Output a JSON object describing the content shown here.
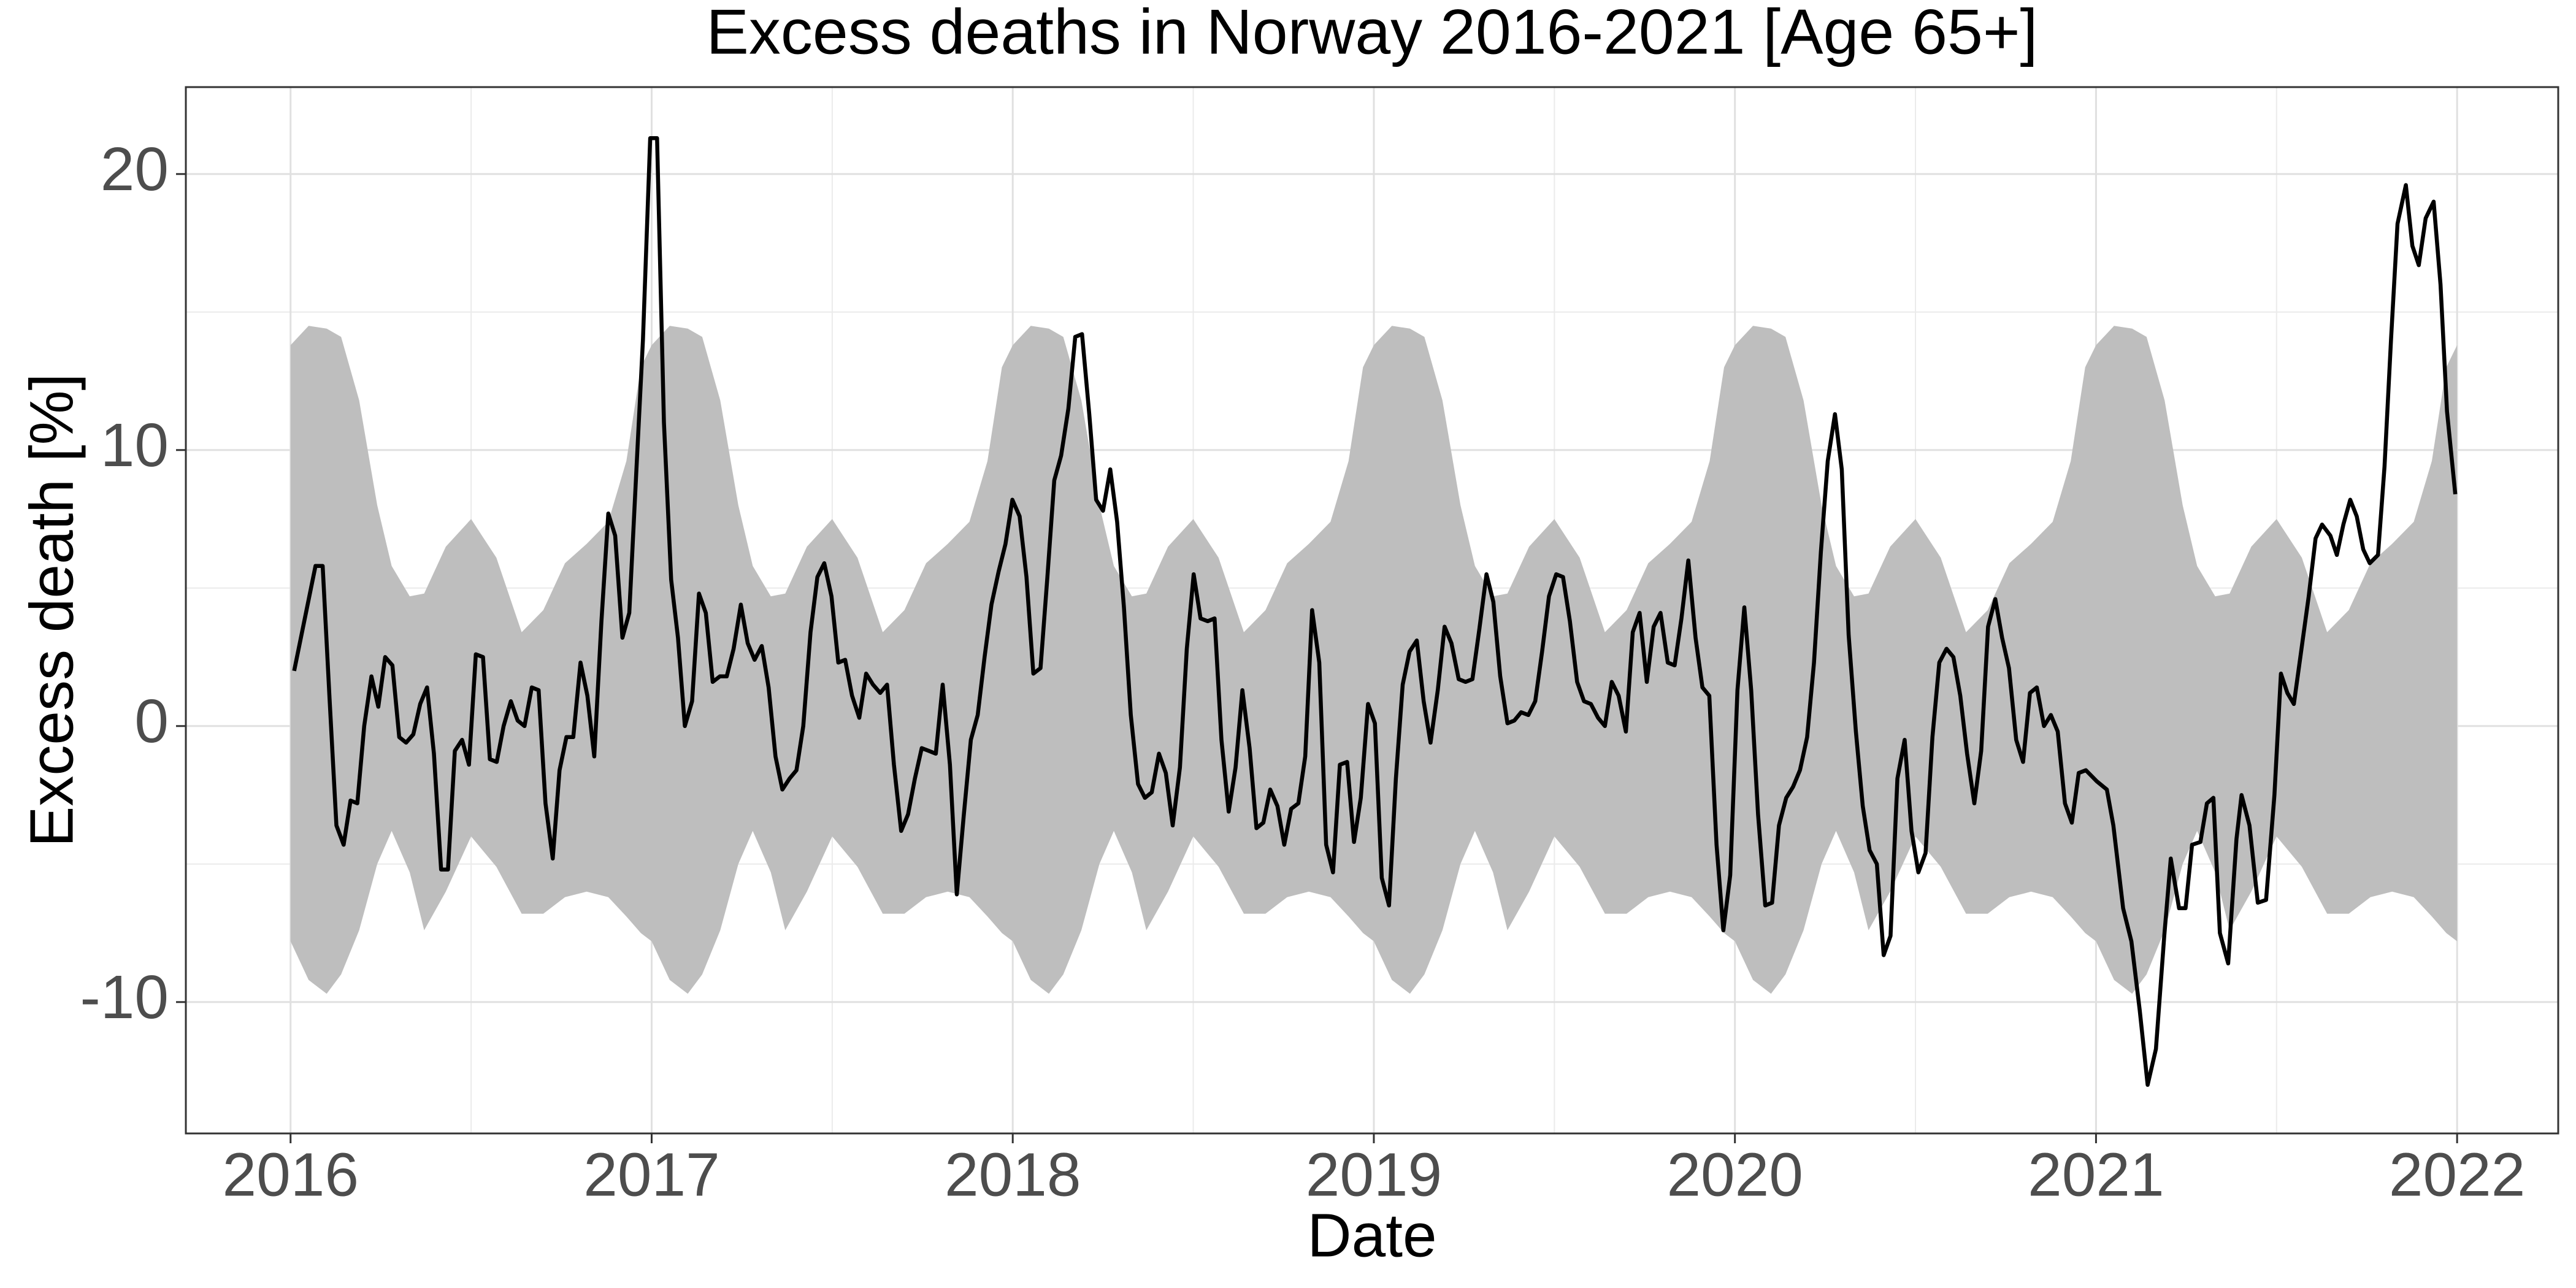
{
  "chart_data": {
    "type": "line",
    "title": "Excess deaths in Norway 2016-2021 [Age 65+]",
    "x_label": "Date",
    "y_label": "Excess death [%]",
    "xlim": [
      2015.71,
      2022.28
    ],
    "ylim": [
      -14.76,
      23.15
    ],
    "xticks": [
      2016,
      2017,
      2018,
      2019,
      2020,
      2021,
      2022
    ],
    "yticks": [
      -10,
      0,
      10,
      20
    ],
    "grid": true,
    "minor_grid": true,
    "band": {
      "color": "#bebebe",
      "x": [
        2016,
        2016.05,
        2016.1,
        2016.14,
        2016.19,
        2016.24,
        2016.28,
        2016.33,
        2016.37,
        2016.43,
        2016.5,
        2016.57,
        2016.64,
        2016.7,
        2016.76,
        2016.82,
        2016.88,
        2016.93,
        2016.97,
        2017,
        2017.05,
        2017.1,
        2017.14,
        2017.19,
        2017.24,
        2017.28,
        2017.33,
        2017.37,
        2017.43,
        2017.5,
        2017.57,
        2017.64,
        2017.7,
        2017.76,
        2017.82,
        2017.88,
        2017.93,
        2017.97,
        2018,
        2018.05,
        2018.1,
        2018.14,
        2018.19,
        2018.24,
        2018.28,
        2018.33,
        2018.37,
        2018.43,
        2018.5,
        2018.57,
        2018.64,
        2018.7,
        2018.76,
        2018.82,
        2018.88,
        2018.93,
        2018.97,
        2019,
        2019.05,
        2019.1,
        2019.14,
        2019.19,
        2019.24,
        2019.28,
        2019.33,
        2019.37,
        2019.43,
        2019.5,
        2019.57,
        2019.64,
        2019.7,
        2019.76,
        2019.82,
        2019.88,
        2019.93,
        2019.97,
        2020,
        2020.05,
        2020.1,
        2020.14,
        2020.19,
        2020.24,
        2020.28,
        2020.33,
        2020.37,
        2020.43,
        2020.5,
        2020.57,
        2020.64,
        2020.7,
        2020.76,
        2020.82,
        2020.88,
        2020.93,
        2020.97,
        2021,
        2021.05,
        2021.1,
        2021.14,
        2021.19,
        2021.24,
        2021.28,
        2021.33,
        2021.37,
        2021.43,
        2021.5,
        2021.57,
        2021.64,
        2021.7,
        2021.76,
        2021.82,
        2021.88,
        2021.93,
        2021.97,
        2022
      ],
      "upper": [
        13.8,
        14.5,
        14.4,
        14.1,
        11.8,
        8,
        5.8,
        4.7,
        4.8,
        6.5,
        7.5,
        6.1,
        3.4,
        4.2,
        5.9,
        6.6,
        7.4,
        9.6,
        13,
        13.8,
        14.5,
        14.4,
        14.1,
        11.8,
        8,
        5.8,
        4.7,
        4.8,
        6.5,
        7.5,
        6.1,
        3.4,
        4.2,
        5.9,
        6.6,
        7.4,
        9.6,
        13,
        13.8,
        14.5,
        14.4,
        14.1,
        11.8,
        8,
        5.8,
        4.7,
        4.8,
        6.5,
        7.5,
        6.1,
        3.4,
        4.2,
        5.9,
        6.6,
        7.4,
        9.6,
        13,
        13.8,
        14.5,
        14.4,
        14.1,
        11.8,
        8,
        5.8,
        4.7,
        4.8,
        6.5,
        7.5,
        6.1,
        3.4,
        4.2,
        5.9,
        6.6,
        7.4,
        9.6,
        13,
        13.8,
        14.5,
        14.4,
        14.1,
        11.8,
        8,
        5.8,
        4.7,
        4.8,
        6.5,
        7.5,
        6.1,
        3.4,
        4.2,
        5.9,
        6.6,
        7.4,
        9.6,
        13,
        13.8,
        14.5,
        14.4,
        14.1,
        11.8,
        8,
        5.8,
        4.7,
        4.8,
        6.5,
        7.5,
        6.1,
        3.4,
        4.2,
        5.9,
        6.6,
        7.4,
        9.6,
        13,
        13.8
      ],
      "lower": [
        -7.8,
        -9.2,
        -9.7,
        -9,
        -7.4,
        -5,
        -3.8,
        -5.3,
        -7.4,
        -6,
        -4,
        -5.1,
        -6.8,
        -6.8,
        -6.2,
        -6,
        -6.2,
        -6.9,
        -7.5,
        -7.8,
        -9.2,
        -9.7,
        -9,
        -7.4,
        -5,
        -3.8,
        -5.3,
        -7.4,
        -6,
        -4,
        -5.1,
        -6.8,
        -6.8,
        -6.2,
        -6,
        -6.2,
        -6.9,
        -7.5,
        -7.8,
        -9.2,
        -9.7,
        -9,
        -7.4,
        -5,
        -3.8,
        -5.3,
        -7.4,
        -6,
        -4,
        -5.1,
        -6.8,
        -6.8,
        -6.2,
        -6,
        -6.2,
        -6.9,
        -7.5,
        -7.8,
        -9.2,
        -9.7,
        -9,
        -7.4,
        -5,
        -3.8,
        -5.3,
        -7.4,
        -6,
        -4,
        -5.1,
        -6.8,
        -6.8,
        -6.2,
        -6,
        -6.2,
        -6.9,
        -7.5,
        -7.8,
        -9.2,
        -9.7,
        -9,
        -7.4,
        -5,
        -3.8,
        -5.3,
        -7.4,
        -6,
        -4,
        -5.1,
        -6.8,
        -6.8,
        -6.2,
        -6,
        -6.2,
        -6.9,
        -7.5,
        -7.8,
        -9.2,
        -9.7,
        -9,
        -7.4,
        -5,
        -3.8,
        -5.3,
        -7.4,
        -6,
        -4,
        -5.1,
        -6.8,
        -6.8,
        -6.2,
        -6,
        -6.2,
        -6.9,
        -7.5,
        -7.8
      ]
    },
    "series": [
      {
        "color": "#000000",
        "x": [
          2016.01,
          2016.069,
          2016.089,
          2016.108,
          2016.127,
          2016.147,
          2016.166,
          2016.185,
          2016.204,
          2016.224,
          2016.243,
          2016.262,
          2016.282,
          2016.301,
          2016.32,
          2016.34,
          2016.359,
          2016.378,
          2016.397,
          2016.417,
          2016.436,
          2016.455,
          2016.475,
          2016.494,
          2016.513,
          2016.533,
          2016.552,
          2016.571,
          2016.59,
          2016.61,
          2016.629,
          2016.648,
          2016.668,
          2016.687,
          2016.706,
          2016.726,
          2016.745,
          2016.764,
          2016.783,
          2016.803,
          2016.822,
          2016.841,
          2016.861,
          2016.88,
          2016.899,
          2016.919,
          2016.938,
          2016.957,
          2016.976,
          2016.996,
          2017.015,
          2017.034,
          2017.054,
          2017.073,
          2017.092,
          2017.112,
          2017.131,
          2017.15,
          2017.169,
          2017.189,
          2017.208,
          2017.227,
          2017.247,
          2017.266,
          2017.285,
          2017.305,
          2017.324,
          2017.343,
          2017.362,
          2017.382,
          2017.401,
          2017.42,
          2017.44,
          2017.459,
          2017.478,
          2017.498,
          2017.517,
          2017.536,
          2017.555,
          2017.575,
          2017.594,
          2017.613,
          2017.633,
          2017.652,
          2017.671,
          2017.691,
          2017.71,
          2017.729,
          2017.748,
          2017.768,
          2017.787,
          2017.806,
          2017.826,
          2017.845,
          2017.864,
          2017.884,
          2017.903,
          2017.922,
          2017.941,
          2017.961,
          2017.98,
          2017.999,
          2018.019,
          2018.038,
          2018.057,
          2018.077,
          2018.096,
          2018.115,
          2018.134,
          2018.154,
          2018.173,
          2018.192,
          2018.212,
          2018.231,
          2018.25,
          2018.27,
          2018.289,
          2018.308,
          2018.327,
          2018.347,
          2018.366,
          2018.385,
          2018.405,
          2018.424,
          2018.443,
          2018.463,
          2018.482,
          2018.501,
          2018.52,
          2018.54,
          2018.559,
          2018.578,
          2018.598,
          2018.617,
          2018.636,
          2018.656,
          2018.675,
          2018.694,
          2018.713,
          2018.733,
          2018.752,
          2018.771,
          2018.791,
          2018.81,
          2018.829,
          2018.849,
          2018.868,
          2018.887,
          2018.906,
          2018.926,
          2018.945,
          2018.964,
          2018.984,
          2019.003,
          2019.022,
          2019.042,
          2019.061,
          2019.08,
          2019.099,
          2019.119,
          2019.138,
          2019.157,
          2019.177,
          2019.196,
          2019.215,
          2019.235,
          2019.254,
          2019.273,
          2019.292,
          2019.312,
          2019.331,
          2019.35,
          2019.37,
          2019.389,
          2019.408,
          2019.428,
          2019.447,
          2019.466,
          2019.485,
          2019.505,
          2019.524,
          2019.543,
          2019.563,
          2019.582,
          2019.601,
          2019.621,
          2019.64,
          2019.659,
          2019.678,
          2019.698,
          2019.717,
          2019.736,
          2019.756,
          2019.775,
          2019.794,
          2019.814,
          2019.833,
          2019.852,
          2019.871,
          2019.891,
          2019.91,
          2019.929,
          2019.949,
          2019.968,
          2019.987,
          2020.007,
          2020.026,
          2020.045,
          2020.064,
          2020.084,
          2020.103,
          2020.122,
          2020.142,
          2020.161,
          2020.18,
          2020.2,
          2020.219,
          2020.238,
          2020.257,
          2020.277,
          2020.296,
          2020.315,
          2020.335,
          2020.354,
          2020.373,
          2020.393,
          2020.412,
          2020.431,
          2020.45,
          2020.47,
          2020.489,
          2020.508,
          2020.528,
          2020.547,
          2020.566,
          2020.586,
          2020.605,
          2020.624,
          2020.643,
          2020.663,
          2020.682,
          2020.701,
          2020.721,
          2020.74,
          2020.759,
          2020.779,
          2020.798,
          2020.817,
          2020.836,
          2020.856,
          2020.875,
          2020.894,
          2020.914,
          2020.933,
          2020.952,
          2020.972,
          2021.002,
          2021.03,
          2021.048,
          2021.075,
          2021.098,
          2021.121,
          2021.143,
          2021.166,
          2021.189,
          2021.207,
          2021.23,
          2021.248,
          2021.266,
          2021.289,
          2021.307,
          2021.325,
          2021.343,
          2021.366,
          2021.389,
          2021.403,
          2021.425,
          2021.448,
          2021.471,
          2021.494,
          2021.512,
          2021.53,
          2021.548,
          2021.567,
          2021.589,
          2021.608,
          2021.626,
          2021.649,
          2021.667,
          2021.685,
          2021.704,
          2021.722,
          2021.74,
          2021.758,
          2021.781,
          2021.799,
          2021.817,
          2021.835,
          2021.858,
          2021.876,
          2021.894,
          2021.913,
          2021.935,
          2021.954,
          2021.972,
          2021.995
        ],
        "values": [
          2,
          5.8,
          5.8,
          1,
          -3.6,
          -4.3,
          -2.7,
          -2.8,
          0,
          1.8,
          0.7,
          2.5,
          2.2,
          -0.4,
          -0.6,
          -0.3,
          0.8,
          1.4,
          -1,
          -5.2,
          -5.2,
          -0.9,
          -0.5,
          -1.4,
          2.6,
          2.5,
          -1.2,
          -1.3,
          0,
          0.9,
          0.2,
          0,
          1.4,
          1.3,
          -2.8,
          -4.8,
          -1.6,
          -0.4,
          -0.4,
          2.3,
          1.1,
          -1.1,
          3.8,
          7.7,
          6.9,
          3.2,
          4.1,
          9.1,
          14,
          21.3,
          21.3,
          11,
          5.3,
          3.2,
          0,
          0.9,
          4.8,
          4.1,
          1.6,
          1.8,
          1.8,
          2.8,
          4.4,
          3,
          2.4,
          2.9,
          1.4,
          -1.1,
          -2.3,
          -1.9,
          -1.6,
          0,
          3.4,
          5.4,
          5.9,
          4.7,
          2.3,
          2.4,
          1.1,
          0.3,
          1.9,
          1.5,
          1.2,
          1.5,
          -1.4,
          -3.8,
          -3.2,
          -1.9,
          -0.8,
          -0.9,
          -1,
          1.5,
          -1.4,
          -6.1,
          -3.3,
          -0.5,
          0.4,
          2.5,
          4.4,
          5.6,
          6.6,
          8.2,
          7.6,
          5.4,
          1.9,
          2.1,
          5.4,
          8.9,
          9.8,
          11.5,
          14.1,
          14.2,
          11.3,
          8.2,
          7.8,
          9.3,
          7.4,
          4.3,
          0.4,
          -2.1,
          -2.6,
          -2.4,
          -1,
          -1.7,
          -3.6,
          -1.5,
          2.8,
          5.5,
          3.9,
          3.8,
          3.9,
          -0.5,
          -3.1,
          -1.5,
          1.3,
          -0.8,
          -3.7,
          -3.5,
          -2.3,
          -2.9,
          -4.3,
          -3,
          -2.8,
          -1.1,
          4.2,
          2.3,
          -4.3,
          -5.3,
          -1.4,
          -1.3,
          -4.2,
          -2.6,
          0.8,
          0.1,
          -5.5,
          -6.5,
          -1.9,
          1.5,
          2.7,
          3.1,
          0.9,
          -0.6,
          1.3,
          3.6,
          3,
          1.7,
          1.6,
          1.7,
          3.5,
          5.5,
          4.5,
          1.8,
          0.1,
          0.2,
          0.5,
          0.4,
          0.9,
          2.7,
          4.7,
          5.5,
          5.4,
          3.8,
          1.6,
          0.9,
          0.8,
          0.3,
          0,
          1.6,
          1.1,
          -0.2,
          3.4,
          4.1,
          1.6,
          3.6,
          4.1,
          2.3,
          2.2,
          3.9,
          6,
          3.2,
          1.4,
          1.1,
          -4.3,
          -7.4,
          -5.4,
          1.3,
          4.3,
          1.3,
          -3.2,
          -6.5,
          -6.4,
          -3.6,
          -2.6,
          -2.2,
          -1.6,
          -0.4,
          2.3,
          6.3,
          9.6,
          11.3,
          9.3,
          3.3,
          -0.2,
          -2.9,
          -4.5,
          -5,
          -8.3,
          -7.6,
          -1.9,
          -0.5,
          -3.8,
          -5.3,
          -4.6,
          -0.4,
          2.3,
          2.8,
          2.5,
          1.1,
          -1,
          -2.8,
          -0.9,
          3.6,
          4.6,
          3.2,
          2.1,
          -0.5,
          -1.3,
          1.2,
          1.4,
          0,
          0.4,
          -0.2,
          -2.8,
          -3.5,
          -1.7,
          -1.6,
          -2,
          -2.3,
          -3.6,
          -6.6,
          -7.8,
          -10.3,
          -13,
          -11.7,
          -7.6,
          -4.8,
          -6.6,
          -6.6,
          -4.3,
          -4.2,
          -2.8,
          -2.6,
          -7.5,
          -8.6,
          -4.1,
          -2.5,
          -3.6,
          -6.4,
          -6.3,
          -2.5,
          1.9,
          1.2,
          0.8,
          2.6,
          4.7,
          6.8,
          7.3,
          6.9,
          6.2,
          7.3,
          8.2,
          7.6,
          6.4,
          5.9,
          6.2,
          9.4,
          14,
          18.2,
          19.6,
          17.4,
          16.7,
          18.4,
          19,
          16,
          11.4,
          8.4
        ]
      }
    ]
  }
}
